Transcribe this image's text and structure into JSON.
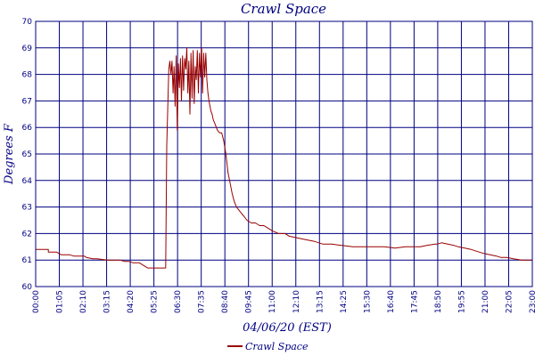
{
  "chart_data": {
    "type": "line",
    "title": "Crawl Space",
    "xlabel": "04/06/20 (EST)",
    "ylabel": "Degrees F",
    "ylim": [
      60,
      70
    ],
    "y_ticks": [
      "60",
      "61",
      "62",
      "63",
      "64",
      "65",
      "66",
      "67",
      "68",
      "69",
      "70"
    ],
    "x_unit": "hours",
    "xlim": [
      0,
      23.5
    ],
    "x_ticks": [
      "00:00",
      "01:05",
      "02:10",
      "03:15",
      "04:20",
      "05:25",
      "06:30",
      "07:35",
      "08:40",
      "09:45",
      "11:00",
      "12:10",
      "13:15",
      "14:25",
      "15:30",
      "16:40",
      "17:45",
      "18:50",
      "19:55",
      "21:00",
      "22:05",
      "23:00"
    ],
    "grid": true,
    "legend_position": "bottom-center",
    "colors": {
      "grid": "#000080",
      "series": "#990000",
      "text": "#000080"
    },
    "series": [
      {
        "name": "Crawl Space",
        "x": [
          0.0,
          0.6,
          0.6,
          1.0,
          1.2,
          1.6,
          1.8,
          2.3,
          2.4,
          2.7,
          2.9,
          3.4,
          3.6,
          4.0,
          4.2,
          4.4,
          4.6,
          4.9,
          5.1,
          5.3,
          5.5,
          5.7,
          6.0,
          6.15,
          6.2,
          6.3,
          6.35,
          6.4,
          6.45,
          6.5,
          6.55,
          6.6,
          6.65,
          6.7,
          6.75,
          6.8,
          6.85,
          6.9,
          6.95,
          7.0,
          7.05,
          7.1,
          7.15,
          7.2,
          7.25,
          7.3,
          7.35,
          7.4,
          7.45,
          7.5,
          7.55,
          7.6,
          7.65,
          7.7,
          7.75,
          7.8,
          7.85,
          7.9,
          7.95,
          8.0,
          8.05,
          8.1,
          8.15,
          8.2,
          8.25,
          8.3,
          8.35,
          8.4,
          8.5,
          8.6,
          8.7,
          8.8,
          8.9,
          9.0,
          9.1,
          9.2,
          9.3,
          9.4,
          9.5,
          9.6,
          9.7,
          9.8,
          9.9,
          10.0,
          10.2,
          10.4,
          10.6,
          10.8,
          11.0,
          11.2,
          11.5,
          11.8,
          12.0,
          12.3,
          12.6,
          12.9,
          13.2,
          13.6,
          14.0,
          14.5,
          15.0,
          15.5,
          16.0,
          16.5,
          17.0,
          17.5,
          18.0,
          18.2,
          18.5,
          18.9,
          19.0,
          19.2,
          19.5,
          19.8,
          20.0,
          20.3,
          20.6,
          21.0,
          21.2,
          21.5,
          21.8,
          22.0,
          22.3,
          22.6,
          23.0,
          23.3,
          23.5
        ],
        "y": [
          61.4,
          61.4,
          61.3,
          61.3,
          61.2,
          61.2,
          61.15,
          61.15,
          61.1,
          61.05,
          61.05,
          61.0,
          61.0,
          61.0,
          60.95,
          60.95,
          60.9,
          60.9,
          60.8,
          60.7,
          60.7,
          60.7,
          60.7,
          60.7,
          65.3,
          68.2,
          68.5,
          68.0,
          68.5,
          67.3,
          68.3,
          66.8,
          68.7,
          65.9,
          68.4,
          67.5,
          68.6,
          67.0,
          68.7,
          67.4,
          68.6,
          68.2,
          69.0,
          67.3,
          68.5,
          66.5,
          68.8,
          67.1,
          68.9,
          66.9,
          68.3,
          67.8,
          68.9,
          67.3,
          68.8,
          67.9,
          69.0,
          67.3,
          68.8,
          67.9,
          68.8,
          67.8,
          67.3,
          67.0,
          66.8,
          66.6,
          66.5,
          66.3,
          66.1,
          65.9,
          65.8,
          65.8,
          65.5,
          65.0,
          64.3,
          63.9,
          63.5,
          63.2,
          63.0,
          62.9,
          62.8,
          62.7,
          62.6,
          62.5,
          62.4,
          62.4,
          62.3,
          62.3,
          62.2,
          62.1,
          62.0,
          62.0,
          61.9,
          61.85,
          61.8,
          61.75,
          61.7,
          61.6,
          61.6,
          61.55,
          61.5,
          61.5,
          61.5,
          61.5,
          61.45,
          61.5,
          61.5,
          61.5,
          61.55,
          61.6,
          61.6,
          61.65,
          61.6,
          61.55,
          61.5,
          61.45,
          61.4,
          61.3,
          61.25,
          61.2,
          61.15,
          61.1,
          61.1,
          61.05,
          61.0,
          61.0,
          61.0
        ]
      }
    ]
  }
}
